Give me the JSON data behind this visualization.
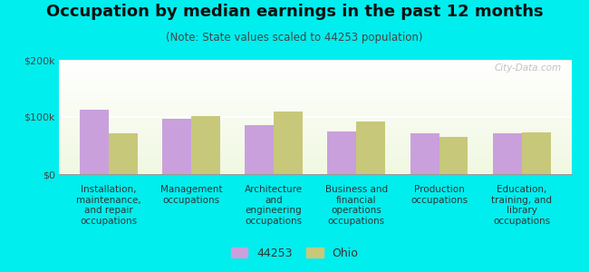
{
  "title": "Occupation by median earnings in the past 12 months",
  "subtitle": "(Note: State values scaled to 44253 population)",
  "categories": [
    "Installation,\nmaintenance,\nand repair\noccupations",
    "Management\noccupations",
    "Architecture\nand\nengineering\noccupations",
    "Business and\nfinancial\noperations\noccupations",
    "Production\noccupations",
    "Education,\ntraining, and\nlibrary\noccupations"
  ],
  "values_44253": [
    112000,
    97000,
    85000,
    75000,
    72000,
    72000
  ],
  "values_ohio": [
    72000,
    102000,
    110000,
    92000,
    65000,
    73000
  ],
  "color_44253": "#c9a0dc",
  "color_ohio": "#c8c87a",
  "bar_width": 0.35,
  "ylim": [
    0,
    200000
  ],
  "yticks": [
    0,
    100000,
    200000
  ],
  "ytick_labels": [
    "$0",
    "$100k",
    "$200k"
  ],
  "background_color": "#00eeee",
  "legend_labels": [
    "44253",
    "Ohio"
  ],
  "watermark": "City-Data.com",
  "title_fontsize": 13,
  "subtitle_fontsize": 8.5,
  "tick_label_fontsize": 8,
  "xlabel_fontsize": 7.5
}
